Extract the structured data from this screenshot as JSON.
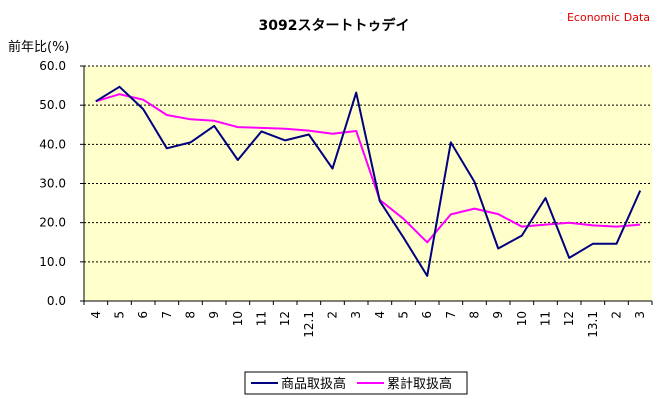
{
  "chart_data": {
    "type": "line",
    "title": "3092スタートトゥデイ",
    "source_label": "Economic Data",
    "ylabel": "前年比(%)",
    "xlabel": "",
    "ylim": [
      0,
      60
    ],
    "yticks": [
      "0.0",
      "10.0",
      "20.0",
      "30.0",
      "40.0",
      "50.0",
      "60.0"
    ],
    "grid": true,
    "legend_position": "bottom",
    "categories": [
      "4",
      "5",
      "6",
      "7",
      "8",
      "9",
      "10",
      "11",
      "12",
      "12.1",
      "2",
      "3",
      "4",
      "5",
      "6",
      "7",
      "8",
      "9",
      "10",
      "11",
      "12",
      "13.1",
      "2",
      "3"
    ],
    "series": [
      {
        "name": "商品取扱高",
        "color": "#000080",
        "values": [
          51.0,
          54.7,
          49.0,
          39.0,
          40.5,
          44.7,
          36.0,
          43.3,
          41.0,
          42.5,
          33.8,
          53.2,
          25.5,
          16.2,
          6.4,
          40.5,
          30.4,
          13.4,
          16.7,
          26.3,
          11.0,
          14.6,
          14.6,
          28.2
        ]
      },
      {
        "name": "累計取扱高",
        "color": "#ff00ff",
        "values": [
          51.0,
          52.8,
          51.4,
          47.5,
          46.4,
          46.0,
          44.4,
          44.2,
          44.0,
          43.5,
          42.7,
          43.4,
          25.8,
          21.0,
          15.0,
          22.1,
          23.6,
          22.2,
          19.0,
          19.5,
          20.0,
          19.3,
          19.0,
          19.5
        ]
      }
    ]
  }
}
